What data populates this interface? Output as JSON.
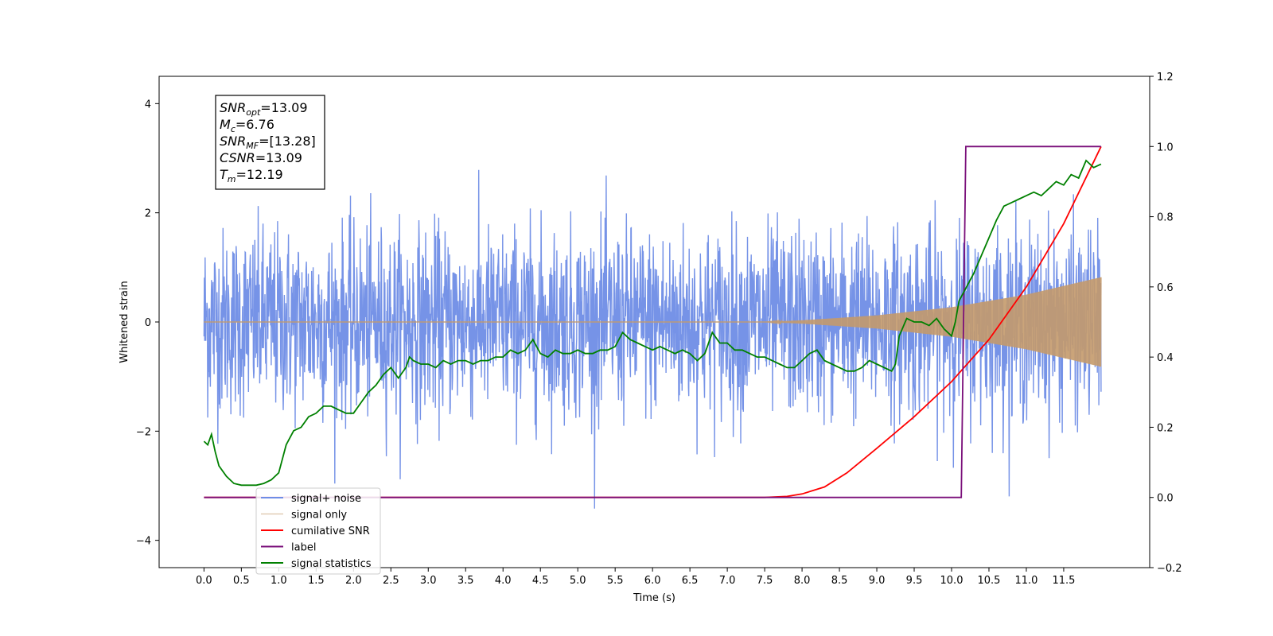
{
  "chart_data": {
    "type": "line",
    "xlabel": "Time (s)",
    "ylabel_left": "Whitened strain",
    "ylabel_right": "",
    "xlim": [
      -0.6,
      12.65
    ],
    "ylim_left": [
      -4.5,
      4.5
    ],
    "ylim_right": [
      -0.2,
      1.2
    ],
    "x_ticks": [
      0.0,
      0.5,
      1.0,
      1.5,
      2.0,
      2.5,
      3.0,
      3.5,
      4.0,
      4.5,
      5.0,
      5.5,
      6.0,
      6.5,
      7.0,
      7.5,
      8.0,
      8.5,
      9.0,
      9.5,
      10.0,
      10.5,
      11.0,
      11.5
    ],
    "x_tick_labels": [
      "0.0",
      "0.5",
      "1.0",
      "1.5",
      "2.0",
      "2.5",
      "3.0",
      "3.5",
      "4.0",
      "4.5",
      "5.0",
      "5.5",
      "6.0",
      "6.5",
      "7.0",
      "7.5",
      "8.0",
      "8.5",
      "9.0",
      "9.5",
      "10.0",
      "10.5",
      "11.0",
      "11.5"
    ],
    "y_ticks_left": [
      -4,
      -2,
      0,
      2,
      4
    ],
    "y_tick_labels_left": [
      "−4",
      "−2",
      "0",
      "2",
      "4"
    ],
    "y_ticks_right": [
      -0.2,
      0.0,
      0.2,
      0.4,
      0.6,
      0.8,
      1.0,
      1.2
    ],
    "y_tick_labels_right": [
      "−0.2",
      "0.0",
      "0.2",
      "0.4",
      "0.6",
      "0.8",
      "1.0",
      "1.2"
    ],
    "grid": false,
    "legend_position": "bottom-left",
    "annotation": {
      "lines": [
        {
          "base": "SNR",
          "sub": "opt",
          "rest": "=13.09"
        },
        {
          "base": "M",
          "sub": "c",
          "rest": "=6.76"
        },
        {
          "base": "SNR",
          "sub": "MF",
          "rest": "=[13.28]"
        },
        {
          "base": "CSNR",
          "sub": "",
          "rest": "=13.09"
        },
        {
          "base": "T",
          "sub": "m",
          "rest": "=12.19"
        }
      ]
    },
    "series": [
      {
        "name": "signal+ noise",
        "axis": "left",
        "color": "#6f8de6",
        "kind": "noise",
        "noise_std": 0.85,
        "x_range": [
          0.0,
          12.0
        ]
      },
      {
        "name": "signal only",
        "axis": "left",
        "color": "#c49a6c",
        "kind": "chirp",
        "envelope": [
          [
            0.0,
            0.0
          ],
          [
            7.5,
            0.0
          ],
          [
            8.0,
            0.03
          ],
          [
            9.0,
            0.12
          ],
          [
            10.0,
            0.27
          ],
          [
            11.0,
            0.5
          ],
          [
            12.0,
            0.82
          ]
        ]
      },
      {
        "name": "cumilative SNR",
        "axis": "right",
        "color": "#ff0000",
        "x": [
          0.0,
          7.5,
          7.8,
          8.0,
          8.3,
          8.6,
          9.0,
          9.5,
          10.0,
          10.5,
          11.0,
          11.5,
          12.0
        ],
        "y": [
          0.0,
          0.0,
          0.003,
          0.01,
          0.03,
          0.07,
          0.14,
          0.23,
          0.33,
          0.45,
          0.6,
          0.78,
          1.0
        ]
      },
      {
        "name": "label",
        "axis": "right",
        "color": "#7a0f7a",
        "x": [
          0.0,
          10.13,
          10.19,
          12.0
        ],
        "y": [
          0.0,
          0.0,
          1.0,
          1.0
        ]
      },
      {
        "name": "signal statistics",
        "axis": "right",
        "color": "#008000",
        "x": [
          0.0,
          0.05,
          0.1,
          0.15,
          0.2,
          0.3,
          0.4,
          0.5,
          0.6,
          0.7,
          0.8,
          0.9,
          1.0,
          1.1,
          1.2,
          1.3,
          1.4,
          1.5,
          1.6,
          1.7,
          1.8,
          1.9,
          2.0,
          2.1,
          2.2,
          2.3,
          2.4,
          2.5,
          2.6,
          2.7,
          2.75,
          2.8,
          2.9,
          3.0,
          3.1,
          3.2,
          3.3,
          3.4,
          3.5,
          3.6,
          3.7,
          3.8,
          3.9,
          4.0,
          4.1,
          4.2,
          4.3,
          4.4,
          4.45,
          4.5,
          4.6,
          4.7,
          4.8,
          4.9,
          5.0,
          5.1,
          5.2,
          5.3,
          5.4,
          5.5,
          5.6,
          5.7,
          5.8,
          5.9,
          6.0,
          6.1,
          6.2,
          6.3,
          6.4,
          6.5,
          6.6,
          6.7,
          6.8,
          6.9,
          7.0,
          7.1,
          7.2,
          7.3,
          7.4,
          7.5,
          7.6,
          7.7,
          7.8,
          7.9,
          8.0,
          8.1,
          8.2,
          8.3,
          8.4,
          8.5,
          8.6,
          8.7,
          8.8,
          8.9,
          9.0,
          9.1,
          9.2,
          9.25,
          9.3,
          9.4,
          9.5,
          9.6,
          9.7,
          9.8,
          9.9,
          10.0,
          10.05,
          10.1,
          10.2,
          10.3,
          10.4,
          10.5,
          10.6,
          10.7,
          10.8,
          10.9,
          11.0,
          11.1,
          11.2,
          11.3,
          11.4,
          11.5,
          11.6,
          11.7,
          11.8,
          11.9,
          12.0
        ],
        "y": [
          0.16,
          0.15,
          0.18,
          0.13,
          0.09,
          0.06,
          0.04,
          0.035,
          0.035,
          0.035,
          0.04,
          0.05,
          0.07,
          0.15,
          0.19,
          0.2,
          0.23,
          0.24,
          0.26,
          0.26,
          0.25,
          0.24,
          0.24,
          0.27,
          0.3,
          0.32,
          0.35,
          0.37,
          0.34,
          0.37,
          0.4,
          0.39,
          0.38,
          0.38,
          0.37,
          0.39,
          0.38,
          0.39,
          0.39,
          0.38,
          0.39,
          0.39,
          0.4,
          0.4,
          0.42,
          0.41,
          0.42,
          0.45,
          0.43,
          0.41,
          0.4,
          0.42,
          0.41,
          0.41,
          0.42,
          0.41,
          0.41,
          0.42,
          0.42,
          0.43,
          0.47,
          0.45,
          0.44,
          0.43,
          0.42,
          0.43,
          0.42,
          0.41,
          0.42,
          0.41,
          0.39,
          0.41,
          0.47,
          0.44,
          0.44,
          0.42,
          0.42,
          0.41,
          0.4,
          0.4,
          0.39,
          0.38,
          0.37,
          0.37,
          0.39,
          0.41,
          0.42,
          0.39,
          0.38,
          0.37,
          0.36,
          0.36,
          0.37,
          0.39,
          0.38,
          0.37,
          0.36,
          0.38,
          0.46,
          0.51,
          0.5,
          0.5,
          0.49,
          0.51,
          0.48,
          0.46,
          0.5,
          0.56,
          0.6,
          0.64,
          0.69,
          0.74,
          0.79,
          0.83,
          0.84,
          0.85,
          0.86,
          0.87,
          0.86,
          0.88,
          0.9,
          0.89,
          0.92,
          0.91,
          0.96,
          0.94,
          0.95
        ]
      }
    ]
  }
}
